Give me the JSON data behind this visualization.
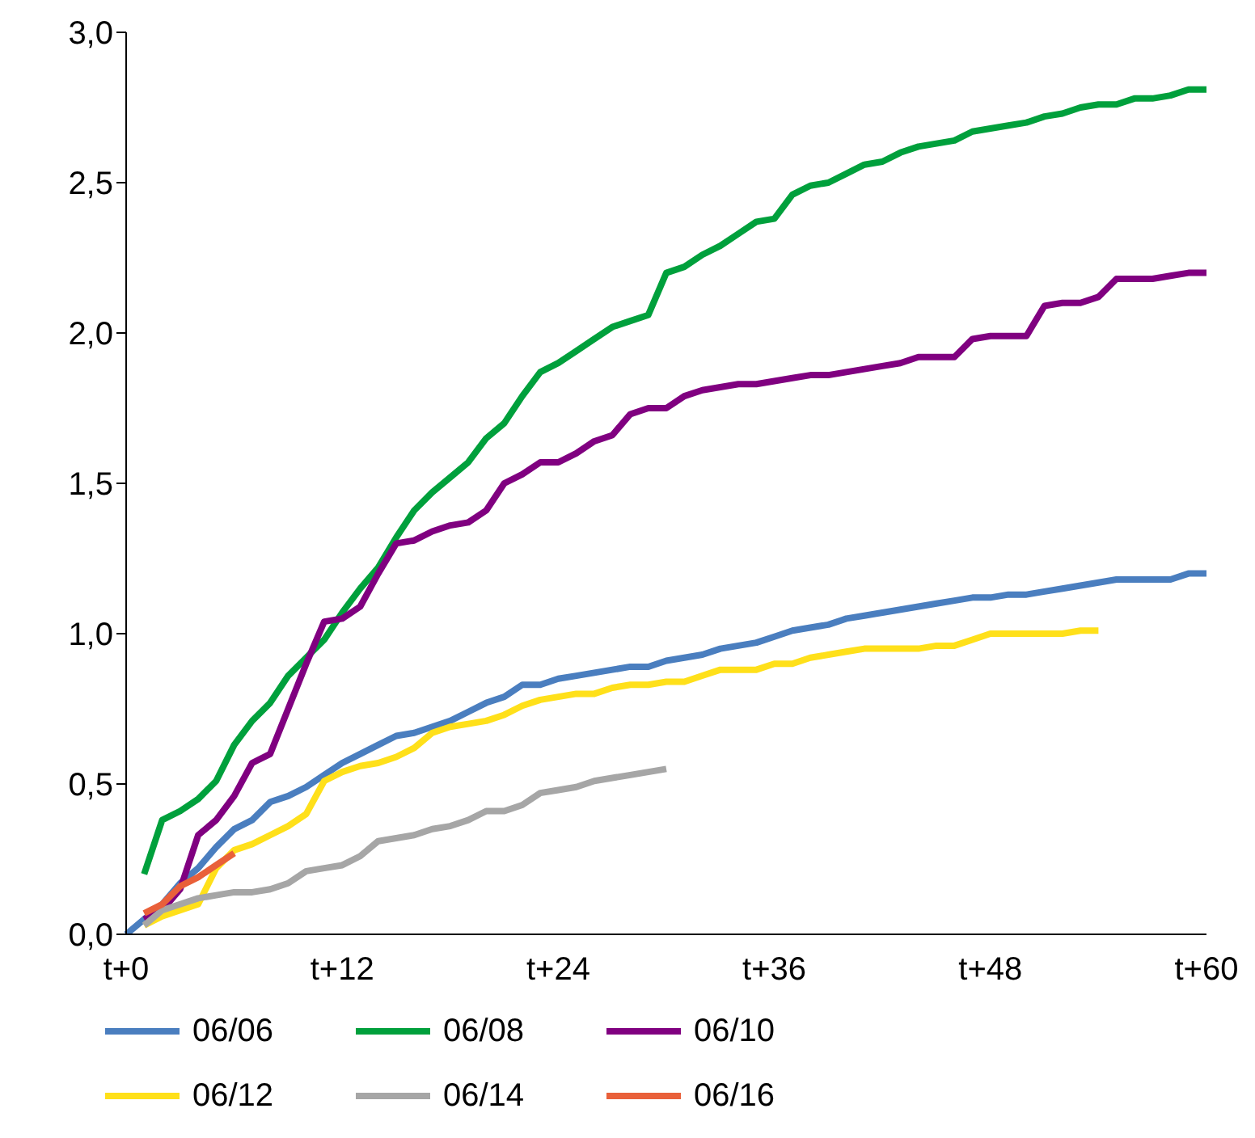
{
  "chart_data": {
    "type": "line",
    "categories": [
      "t+0",
      null,
      null,
      null,
      null,
      null,
      null,
      null,
      null,
      null,
      null,
      null,
      "t+12",
      null,
      null,
      null,
      null,
      null,
      null,
      null,
      null,
      null,
      null,
      null,
      "t+24",
      null,
      null,
      null,
      null,
      null,
      null,
      null,
      null,
      null,
      null,
      null,
      "t+36",
      null,
      null,
      null,
      null,
      null,
      null,
      null,
      null,
      null,
      null,
      null,
      "t+48",
      null,
      null,
      null,
      null,
      null,
      null,
      null,
      null,
      null,
      null,
      null,
      "t+60"
    ],
    "series": [
      {
        "name": "06/06",
        "color": "#4a7ebf",
        "values": [
          0,
          0.05,
          0.1,
          0.17,
          0.22,
          0.29,
          0.35,
          0.38,
          0.44,
          0.46,
          0.49,
          0.53,
          0.57,
          0.6,
          0.63,
          0.66,
          0.67,
          0.69,
          0.71,
          0.74,
          0.77,
          0.79,
          0.83,
          0.83,
          0.85,
          0.86,
          0.87,
          0.88,
          0.89,
          0.89,
          0.91,
          0.92,
          0.93,
          0.95,
          0.96,
          0.97,
          0.99,
          1.01,
          1.02,
          1.03,
          1.05,
          1.06,
          1.07,
          1.08,
          1.09,
          1.1,
          1.11,
          1.12,
          1.12,
          1.13,
          1.13,
          1.14,
          1.15,
          1.16,
          1.17,
          1.18,
          1.18,
          1.18,
          1.18,
          1.2,
          1.2
        ]
      },
      {
        "name": "06/08",
        "color": "#00a03c",
        "values": [
          null,
          0.2,
          0.38,
          0.41,
          0.45,
          0.51,
          0.63,
          0.71,
          0.77,
          0.86,
          0.92,
          0.98,
          1.07,
          1.15,
          1.22,
          1.32,
          1.41,
          1.47,
          1.52,
          1.57,
          1.65,
          1.7,
          1.79,
          1.87,
          1.9,
          1.94,
          1.98,
          2.02,
          2.04,
          2.06,
          2.2,
          2.22,
          2.26,
          2.29,
          2.33,
          2.37,
          2.38,
          2.46,
          2.49,
          2.5,
          2.53,
          2.56,
          2.57,
          2.6,
          2.62,
          2.63,
          2.64,
          2.67,
          2.68,
          2.69,
          2.7,
          2.72,
          2.73,
          2.75,
          2.76,
          2.76,
          2.78,
          2.78,
          2.79,
          2.81,
          2.81
        ]
      },
      {
        "name": "06/10",
        "color": "#800080",
        "values": [
          null,
          0.05,
          0.08,
          0.15,
          0.33,
          0.38,
          0.46,
          0.57,
          0.6,
          0.75,
          0.9,
          1.04,
          1.05,
          1.09,
          1.2,
          1.3,
          1.31,
          1.34,
          1.36,
          1.37,
          1.41,
          1.5,
          1.53,
          1.57,
          1.57,
          1.6,
          1.64,
          1.66,
          1.73,
          1.75,
          1.75,
          1.79,
          1.81,
          1.82,
          1.83,
          1.83,
          1.84,
          1.85,
          1.86,
          1.86,
          1.87,
          1.88,
          1.89,
          1.9,
          1.92,
          1.92,
          1.92,
          1.98,
          1.99,
          1.99,
          1.99,
          2.09,
          2.1,
          2.1,
          2.12,
          2.18,
          2.18,
          2.18,
          2.19,
          2.2,
          2.2
        ]
      },
      {
        "name": "06/12",
        "color": "#ffe01a",
        "values": [
          null,
          0.03,
          0.06,
          0.08,
          0.1,
          0.22,
          0.28,
          0.3,
          0.33,
          0.36,
          0.4,
          0.51,
          0.54,
          0.56,
          0.57,
          0.59,
          0.62,
          0.67,
          0.69,
          0.7,
          0.71,
          0.73,
          0.76,
          0.78,
          0.79,
          0.8,
          0.8,
          0.82,
          0.83,
          0.83,
          0.84,
          0.84,
          0.86,
          0.88,
          0.88,
          0.88,
          0.9,
          0.9,
          0.92,
          0.93,
          0.94,
          0.95,
          0.95,
          0.95,
          0.95,
          0.96,
          0.96,
          0.98,
          1.0,
          1.0,
          1.0,
          1.0,
          1.0,
          1.01,
          1.01,
          null,
          null,
          null,
          null,
          null,
          null
        ]
      },
      {
        "name": "06/14",
        "color": "#a6a6a6",
        "values": [
          null,
          0.03,
          0.08,
          0.1,
          0.12,
          0.13,
          0.14,
          0.14,
          0.15,
          0.17,
          0.21,
          0.22,
          0.23,
          0.26,
          0.31,
          0.32,
          0.33,
          0.35,
          0.36,
          0.38,
          0.41,
          0.41,
          0.43,
          0.47,
          0.48,
          0.49,
          0.51,
          0.52,
          0.53,
          0.54,
          0.55,
          null,
          null,
          null,
          null,
          null,
          null,
          null,
          null,
          null,
          null,
          null,
          null,
          null,
          null,
          null,
          null,
          null,
          null,
          null,
          null,
          null,
          null,
          null,
          null,
          null,
          null,
          null,
          null,
          null,
          null
        ]
      },
      {
        "name": "06/16",
        "color": "#e9603a",
        "values": [
          null,
          0.07,
          0.1,
          0.16,
          0.19,
          0.23,
          0.27,
          null,
          null,
          null,
          null,
          null,
          null,
          null,
          null,
          null,
          null,
          null,
          null,
          null,
          null,
          null,
          null,
          null,
          null,
          null,
          null,
          null,
          null,
          null,
          null,
          null,
          null,
          null,
          null,
          null,
          null,
          null,
          null,
          null,
          null,
          null,
          null,
          null,
          null,
          null,
          null,
          null,
          null,
          null,
          null,
          null,
          null,
          null,
          null,
          null,
          null,
          null,
          null,
          null,
          null
        ]
      }
    ],
    "ylim": [
      0,
      3
    ],
    "yticks": [
      {
        "value": 0,
        "label": "0,0"
      },
      {
        "value": 0.5,
        "label": "0,5"
      },
      {
        "value": 1,
        "label": "1,0"
      },
      {
        "value": 1.5,
        "label": "1,5"
      },
      {
        "value": 2,
        "label": "2,0"
      },
      {
        "value": 2.5,
        "label": "2,5"
      },
      {
        "value": 3,
        "label": "3,0"
      }
    ],
    "grid": false,
    "legend": "bottom",
    "marker": "none",
    "line_style": "solid"
  }
}
